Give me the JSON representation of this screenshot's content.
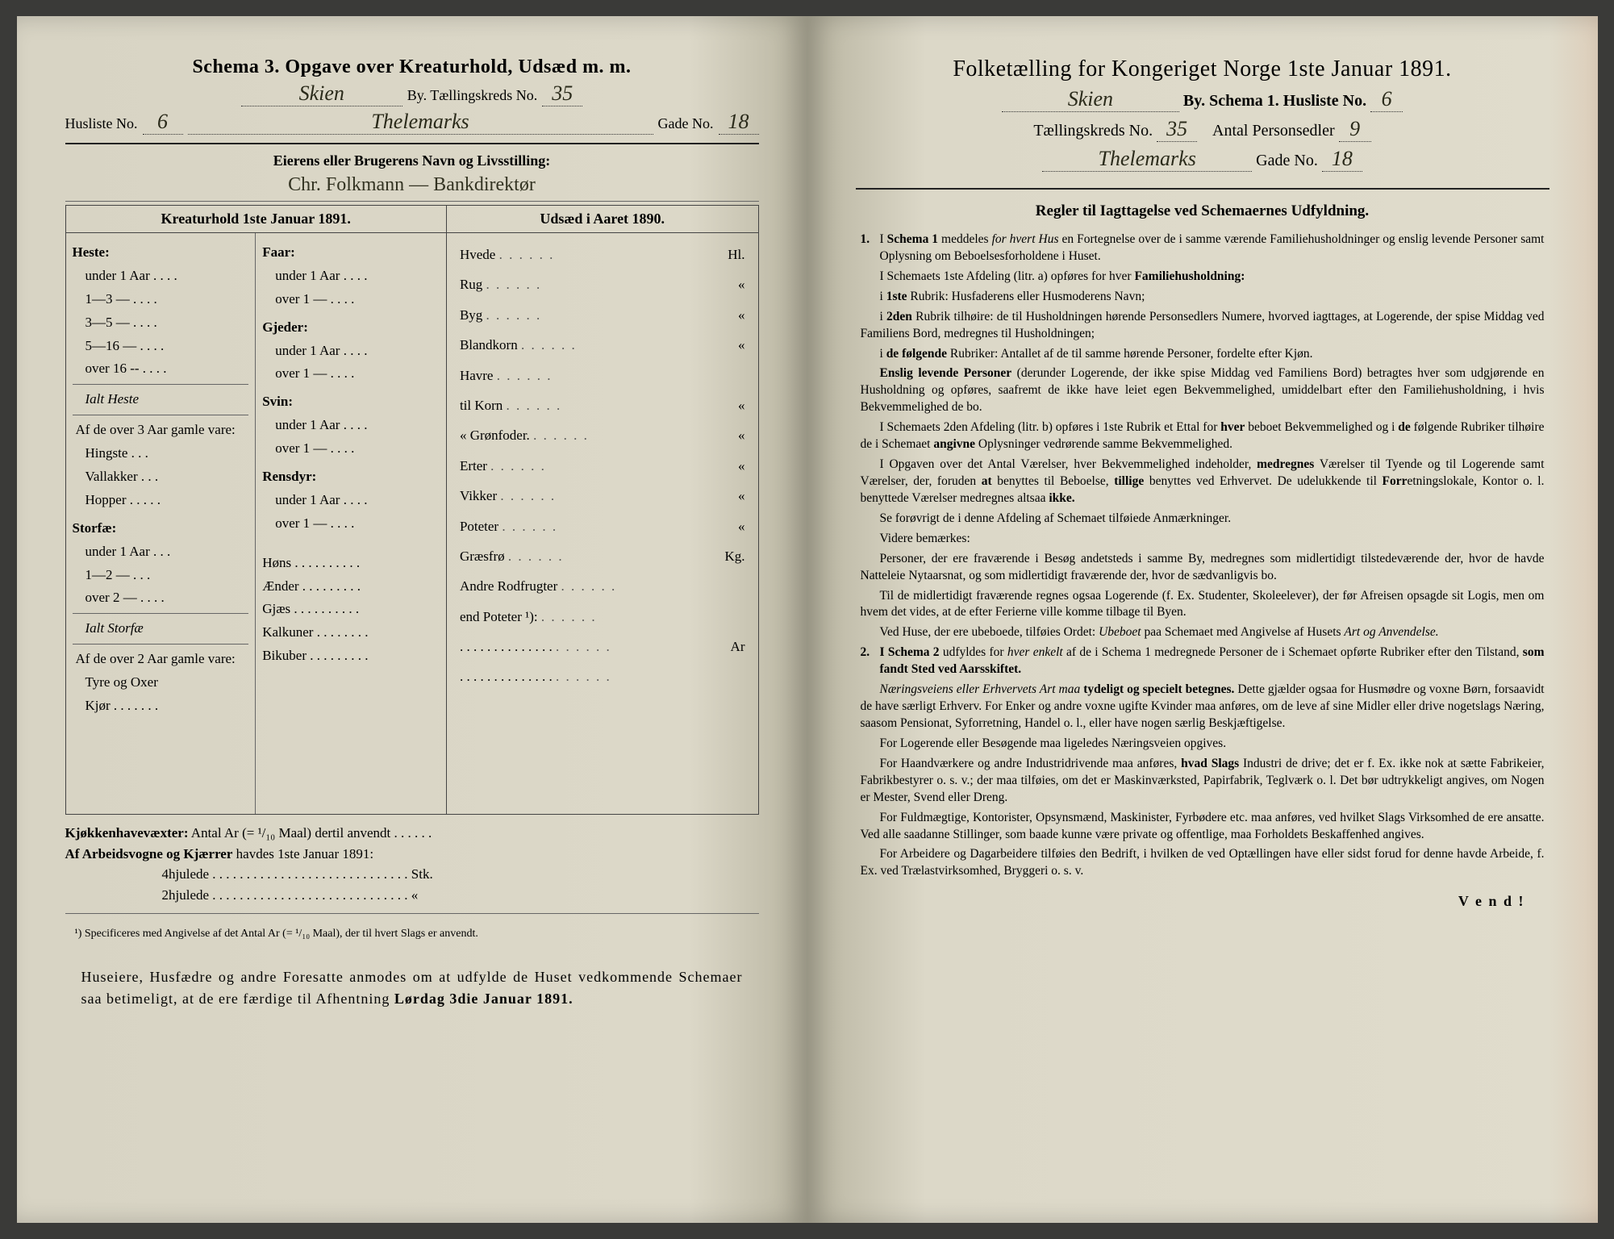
{
  "colors": {
    "paper_left": "#dcd8c8",
    "paper_right": "#e0dccc",
    "ink": "#222222",
    "handwriting": "#2a2a1a",
    "background": "#3a3a38"
  },
  "left": {
    "title": "Schema 3. Opgave over Kreaturhold, Udsæd m. m.",
    "by_label": "By.  Tællingskreds No.",
    "by_hand": "Skien",
    "kreds_no": "35",
    "husliste_label": "Husliste No.",
    "husliste_no": "6",
    "gade_hand": "Thelemarks",
    "gade_label": "Gade No.",
    "gade_no": "18",
    "owner_label": "Eierens eller Brugerens Navn og Livsstilling:",
    "owner_hand": "Chr. Folkmann — Bankdirektør",
    "table_header_left": "Kreaturhold 1ste Januar 1891.",
    "table_header_right": "Udsæd i Aaret 1890.",
    "livestock": {
      "heste": {
        "title": "Heste:",
        "rows": [
          "under 1 Aar . . . .",
          "1—3   —  . . . .",
          "3—5   —  . . . .",
          "5—16  —  . . . .",
          "over 16 --  . . . ."
        ],
        "ialt": "Ialt Heste",
        "af_over": "Af de over 3 Aar gamle vare:",
        "sub": [
          "Hingste . . .",
          "Vallakker . . .",
          "Hopper . . . . ."
        ]
      },
      "storfae": {
        "title": "Storfæ:",
        "rows": [
          "under 1 Aar . . .",
          "1—2   —  . . .",
          "over 2   —  . . . ."
        ],
        "ialt": "Ialt Storfæ",
        "af_over": "Af de over 2 Aar gamle vare:",
        "sub": [
          "Tyre og Oxer",
          "Kjør . . . . . . ."
        ]
      },
      "faar": {
        "title": "Faar:",
        "rows": [
          "under 1 Aar . . . .",
          "over 1   —  . . . ."
        ]
      },
      "gjeder": {
        "title": "Gjeder:",
        "rows": [
          "under 1 Aar . . . .",
          "over 1   —  . . . ."
        ]
      },
      "svin": {
        "title": "Svin:",
        "rows": [
          "under 1 Aar . . . .",
          "over 1   —  . . . ."
        ]
      },
      "rensdyr": {
        "title": "Rensdyr:",
        "rows": [
          "under 1 Aar . . . .",
          "over 1   —  . . . ."
        ]
      },
      "poultry": [
        "Høns  . . . . . . . . . .",
        "Ænder . . . . . . . . .",
        "Gjæs  . . . . . . . . . .",
        "Kalkuner . . . . . . . .",
        "Bikuber . . . . . . . . ."
      ]
    },
    "seeds": [
      {
        "l": "Hvede",
        "r": "Hl."
      },
      {
        "l": "Rug",
        "r": "«"
      },
      {
        "l": "Byg",
        "r": "«"
      },
      {
        "l": "Blandkorn",
        "r": "«"
      },
      {
        "l": "Havre",
        "r": ""
      },
      {
        "l": "   til Korn",
        "r": "«"
      },
      {
        "l": "   «  Grønfoder.",
        "r": "«"
      },
      {
        "l": "Erter",
        "r": "«"
      },
      {
        "l": "Vikker",
        "r": "«"
      },
      {
        "l": "Poteter",
        "r": "«"
      },
      {
        "l": "Græsfrø",
        "r": "Kg."
      },
      {
        "l": "Andre Rodfrugter",
        "r": ""
      },
      {
        "l": "   end Poteter ¹):",
        "r": ""
      },
      {
        "l": ". . . . . . . . . . . . . .",
        "r": "Ar"
      },
      {
        "l": ". . . . . . . . . . . . . .",
        "r": ""
      }
    ],
    "kjokken_label": "Kjøkkenhavevæxter:",
    "kjokken_text": "Antal Ar (= ¹/₁₀ Maal) dertil anvendt . . . . . .",
    "arbeids_label": "Af Arbeidsvogne og Kjærrer",
    "arbeids_text": "havdes 1ste Januar 1891:",
    "wheel4": "4hjulede . . . . . . . . . . . . . . . . . . . . . . . . . . . . . Stk.",
    "wheel2": "2hjulede . . . . . . . . . . . . . . . . . . . . . . . . . . . . .   «",
    "footnote": "¹) Specificeres med Angivelse af det Antal Ar (= ¹/₁₀ Maal), der til hvert Slags er anvendt.",
    "bottom": "Huseiere, Husfædre og andre Foresatte anmodes om at udfylde de Huset vedkommende Schemaer saa betimeligt, at de ere færdige til Afhentning Lørdag 3die Januar 1891."
  },
  "right": {
    "title": "Folketælling for Kongeriget Norge 1ste Januar 1891.",
    "by_hand": "Skien",
    "line1_a": "By.   Schema 1.   Husliste No.",
    "husliste_no": "6",
    "line2_a": "Tællingskreds No.",
    "kreds_no": "35",
    "line2_b": "Antal Personsedler",
    "personsedler": "9",
    "gade_hand": "Thelemarks",
    "gade_label": "Gade No.",
    "gade_no": "18",
    "regler_title": "Regler til Iagttagelse ved Schemaernes Udfyldning.",
    "rules": [
      {
        "n": "1.",
        "t": "I <b>Schema 1</b> meddeles <i>for hvert Hus</i> en Fortegnelse over de i samme værende Familiehusholdninger og enslig levende Personer samt Oplysning om Beboelsesforholdene i Huset."
      },
      {
        "t": "I Schemaets 1ste Afdeling (litr. a) opføres for hver <b>Familiehusholdning:</b>"
      },
      {
        "t": "i <b>1ste</b> Rubrik: Husfaderens eller Husmoderens Navn;"
      },
      {
        "t": "i <b>2den</b> Rubrik tilhøire: de til Husholdningen hørende Personsedlers Numere, hvorved iagttages, at Logerende, der spise Middag ved Familiens Bord, medregnes til Husholdningen;"
      },
      {
        "t": "i <b>de følgende</b> Rubriker: Antallet af de til samme hørende Personer, fordelte efter Kjøn."
      },
      {
        "t": "<b>Enslig levende Personer</b> (derunder Logerende, der ikke spise Middag ved Familiens Bord) betragtes hver som udgjørende en Husholdning og opføres, saafremt de ikke have leiet egen Bekvemmelighed, umiddelbart efter den Familiehusholdning, i hvis Bekvemmelighed de bo."
      },
      {
        "t": "I Schemaets 2den Afdeling (litr. b) opføres i 1ste Rubrik et Ettal for <b>hver</b> beboet Bekvemmelighed og i <b>de</b> følgende Rubriker tilhøire de i Schemaet <b>angivne</b> Oplysninger vedrørende samme Bekvemmelighed."
      },
      {
        "t": "I Opgaven over det Antal Værelser, hver Bekvemmelighed indeholder, <b>medregnes</b> Værelser til Tyende og til Logerende samt Værelser, der, foruden <b>at</b> benyttes til Beboelse, <b>tillige</b> benyttes ved Erhvervet. De udelukkende til <b>Forr</b>etningslokale, Kontor o. l. benyttede Værelser medregnes altsaa <b>ikke.</b>"
      },
      {
        "t": "Se forøvrigt de i denne Afdeling af Schemaet tilføiede Anmærkninger."
      },
      {
        "t": "Videre bemærkes:"
      },
      {
        "t": "Personer, der ere fraværende i Besøg andetsteds i samme By, medregnes som midlertidigt tilstedeværende der, hvor de havde Natteleie Nytaarsnat, og som midlertidigt fraværende der, hvor de sædvanligvis bo."
      },
      {
        "t": "Til de midlertidigt fraværende regnes ogsaa Logerende (f. Ex. Studenter, Skoleelever), der før Afreisen opsagde sit Logis, men om hvem det vides, at de efter Ferierne ville komme tilbage til Byen."
      },
      {
        "t": "Ved Huse, der ere ubeboede, tilføies Ordet: <i>Ubeboet</i> paa Schemaet med Angivelse af Husets <i>Art og Anvendelse.</i>"
      },
      {
        "n": "2.",
        "t": "<b>I Schema 2</b> udfyldes for <i>hver enkelt</i> af de i Schema 1 medregnede Personer de i Schemaet opførte Rubriker efter den Tilstand, <b>som fandt Sted ved Aarsskiftet.</b>"
      },
      {
        "t": "<i>Næringsveiens eller Erhvervets Art maa</i> <b>tydeligt og specielt betegnes.</b> Dette gjælder ogsaa for Husmødre og voxne Børn, forsaavidt de have særligt Erhverv. For Enker og andre voxne ugifte Kvinder maa anføres, om de leve af sine Midler eller drive nogetslags Næring, saasom Pensionat, Syforretning, Handel o. l., eller have nogen særlig Beskjæftigelse."
      },
      {
        "t": "For Logerende eller Besøgende maa ligeledes Næringsveien opgives."
      },
      {
        "t": "For Haandværkere og andre Industridrivende maa anføres, <b>hvad Slags</b> Industri de drive; det er f. Ex. ikke nok at sætte Fabrikeier, Fabrikbestyrer o. s. v.; der maa tilføies, om det er Maskinværksted, Papirfabrik, Teglværk o. l. Det bør udtrykkeligt angives, om Nogen er Mester, Svend eller Dreng."
      },
      {
        "t": "For Fuldmægtige, Kontorister, Opsynsmænd, Maskinister, Fyrbødere etc. maa anføres, ved hvilket Slags Virksomhed de ere ansatte. Ved alle saadanne Stillinger, som baade kunne være private og offentlige, maa Forholdets Beskaffenhed angives."
      },
      {
        "t": "For Arbeidere og Dagarbeidere tilføies den Bedrift, i hvilken de ved Optællingen have eller sidst forud for denne havde Arbeide, f. Ex. ved Trælastvirksomhed, Bryggeri o. s. v."
      }
    ],
    "vend": "V e n d !"
  }
}
